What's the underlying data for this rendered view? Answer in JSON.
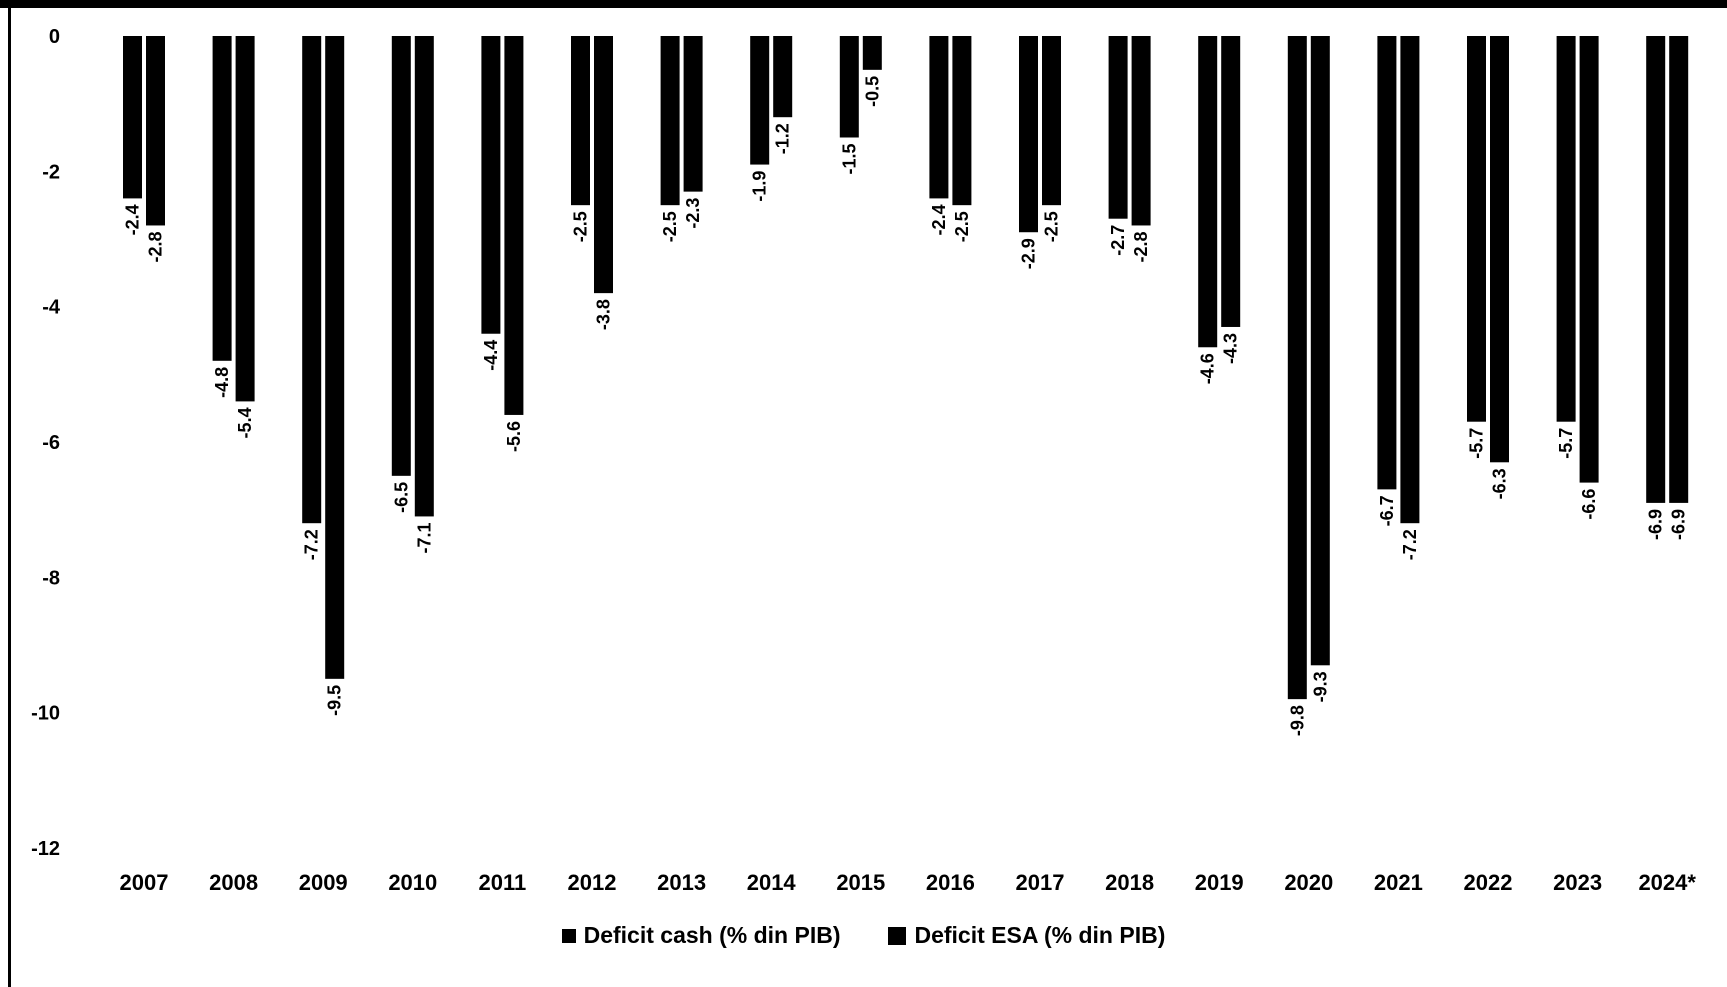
{
  "chart_data": {
    "type": "bar",
    "title": "",
    "xlabel": "",
    "ylabel": "",
    "ylim": [
      -12,
      0
    ],
    "yticks": [
      0,
      -2,
      -4,
      -6,
      -8,
      -10,
      -12
    ],
    "grid": false,
    "legend_position": "bottom",
    "bar_color": "#000000",
    "categories": [
      "2007",
      "2008",
      "2009",
      "2010",
      "2011",
      "2012",
      "2013",
      "2014",
      "2015",
      "2016",
      "2017",
      "2018",
      "2019",
      "2020",
      "2021",
      "2022",
      "2023",
      "2024*"
    ],
    "series": [
      {
        "name": "Deficit cash (% din PIB)",
        "values": [
          -2.4,
          -4.8,
          -7.2,
          -6.5,
          -4.4,
          -2.5,
          -2.5,
          -1.9,
          -1.5,
          -2.4,
          -2.9,
          -2.7,
          -4.6,
          -9.8,
          -6.7,
          -5.7,
          -5.7,
          -6.9
        ]
      },
      {
        "name": "Deficit ESA (% din PIB)",
        "values": [
          -2.8,
          -5.4,
          -9.5,
          -7.1,
          -5.6,
          -3.8,
          -2.3,
          -1.2,
          -0.5,
          -2.5,
          -2.5,
          -2.8,
          -4.3,
          -9.3,
          -7.2,
          -6.3,
          -6.6,
          -6.9
        ]
      }
    ]
  }
}
